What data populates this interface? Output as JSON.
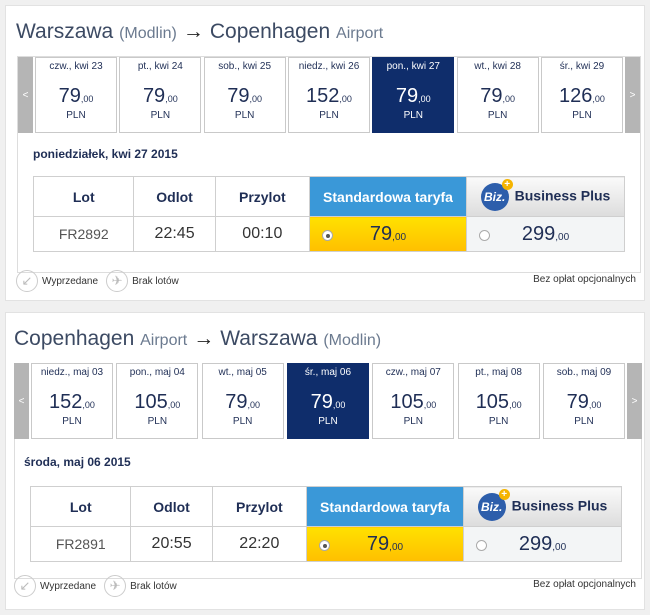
{
  "sections": [
    {
      "from": "Warszawa",
      "from_sub": "(Modlin)",
      "arrow": "→",
      "to": "Copenhagen",
      "to_sub": "Airport",
      "prev": "<",
      "next": ">",
      "days": [
        {
          "label": "czw., kwi 23",
          "price": "79",
          "cents": ",00",
          "cur": "PLN"
        },
        {
          "label": "pt., kwi 24",
          "price": "79",
          "cents": ",00",
          "cur": "PLN"
        },
        {
          "label": "sob., kwi 25",
          "price": "79",
          "cents": ",00",
          "cur": "PLN"
        },
        {
          "label": "niedz., kwi 26",
          "price": "152",
          "cents": ",00",
          "cur": "PLN"
        },
        {
          "label": "pon., kwi 27",
          "price": "79",
          "cents": ",00",
          "cur": "PLN",
          "selected": true
        },
        {
          "label": "wt., kwi 28",
          "price": "79",
          "cents": ",00",
          "cur": "PLN"
        },
        {
          "label": "śr., kwi 29",
          "price": "126",
          "cents": ",00",
          "cur": "PLN"
        }
      ],
      "date": "poniedziałek, kwi 27 2015",
      "headers": {
        "flight": "Lot",
        "dep": "Odlot",
        "arr": "Przylot",
        "std": "Standardowa taryfa",
        "biz_logo": "Biz.",
        "biz": "Business Plus"
      },
      "row": {
        "flight": "FR2892",
        "dep": "22:45",
        "arr": "00:10",
        "std_price": "79",
        "std_cents": ",00",
        "biz_price": "299",
        "biz_cents": ",00"
      },
      "legend": {
        "sold": "Wyprzedane",
        "none": "Brak lotów",
        "fees": "Bez opłat opcjonalnych"
      }
    },
    {
      "from": "Copenhagen",
      "from_sub": "Airport",
      "arrow": "→",
      "to": "Warszawa",
      "to_sub": "(Modlin)",
      "prev": "<",
      "next": ">",
      "days": [
        {
          "label": "niedz., maj 03",
          "price": "152",
          "cents": ",00",
          "cur": "PLN"
        },
        {
          "label": "pon., maj 04",
          "price": "105",
          "cents": ",00",
          "cur": "PLN"
        },
        {
          "label": "wt., maj 05",
          "price": "79",
          "cents": ",00",
          "cur": "PLN"
        },
        {
          "label": "śr., maj 06",
          "price": "79",
          "cents": ",00",
          "cur": "PLN",
          "selected": true
        },
        {
          "label": "czw., maj 07",
          "price": "105",
          "cents": ",00",
          "cur": "PLN"
        },
        {
          "label": "pt., maj 08",
          "price": "105",
          "cents": ",00",
          "cur": "PLN"
        },
        {
          "label": "sob., maj 09",
          "price": "79",
          "cents": ",00",
          "cur": "PLN"
        }
      ],
      "date": "środa, maj 06 2015",
      "headers": {
        "flight": "Lot",
        "dep": "Odlot",
        "arr": "Przylot",
        "std": "Standardowa taryfa",
        "biz_logo": "Biz.",
        "biz": "Business Plus"
      },
      "row": {
        "flight": "FR2891",
        "dep": "20:55",
        "arr": "22:20",
        "std_price": "79",
        "std_cents": ",00",
        "biz_price": "299",
        "biz_cents": ",00"
      },
      "legend": {
        "sold": "Wyprzedane",
        "none": "Brak lotów",
        "fees": "Bez opłat opcjonalnych"
      }
    }
  ],
  "colors": {
    "selected_day": "#0f2d6b",
    "standard_header": "#3a98d8",
    "standard_fare": "#ffd200",
    "biz_logo": "#2d5eab"
  }
}
